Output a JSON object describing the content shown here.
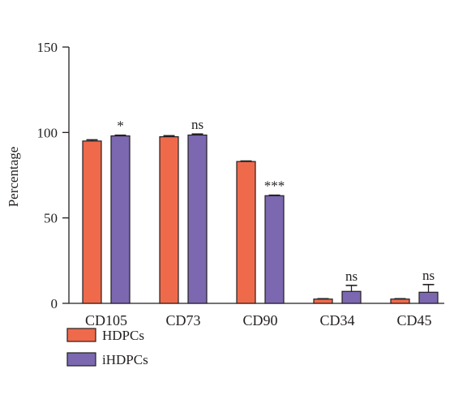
{
  "chart_data": {
    "type": "bar",
    "ylabel": "Percentage",
    "xlabel": "",
    "ylim": [
      0,
      150
    ],
    "yticks": [
      0,
      50,
      100,
      150
    ],
    "categories": [
      "CD105",
      "CD73",
      "CD90",
      "CD34",
      "CD45"
    ],
    "series": [
      {
        "name": "HDPCs",
        "color": "#ef6a4b",
        "values": [
          95,
          97.5,
          83,
          2.5,
          2.5
        ],
        "errors": [
          0.7,
          0.6,
          0.3,
          0.2,
          0.2
        ]
      },
      {
        "name": "iHDPCs",
        "color": "#7b68b0",
        "values": [
          98,
          98.5,
          63,
          7,
          6.5
        ],
        "errors": [
          0.4,
          0.6,
          0.3,
          3.5,
          4.5
        ]
      }
    ],
    "annotations": [
      "*",
      "ns",
      "***",
      "ns",
      "ns"
    ],
    "legend_position": "bottom-left"
  }
}
